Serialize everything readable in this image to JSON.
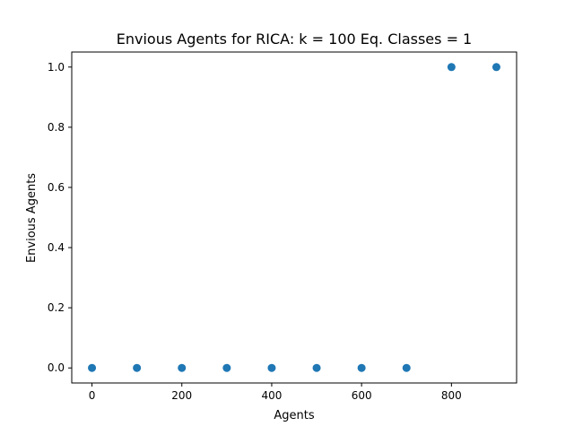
{
  "chart_data": {
    "type": "scatter",
    "title": "Envious Agents for RICA: k = 100 Eq. Classes = 1",
    "xlabel": "Agents",
    "ylabel": "Envious Agents",
    "xlim": [
      -45,
      945
    ],
    "ylim": [
      -0.05,
      1.05
    ],
    "x_ticks": [
      0,
      200,
      400,
      600,
      800
    ],
    "x_tick_labels": [
      "0",
      "200",
      "400",
      "600",
      "800"
    ],
    "y_ticks": [
      0.0,
      0.2,
      0.4,
      0.6,
      0.8,
      1.0
    ],
    "y_tick_labels": [
      "0.0",
      "0.2",
      "0.4",
      "0.6",
      "0.8",
      "1.0"
    ],
    "grid": false,
    "series": [
      {
        "color": "#1f77b4",
        "x": [
          0,
          100,
          200,
          300,
          400,
          500,
          600,
          700,
          800,
          900
        ],
        "y": [
          0,
          0,
          0,
          0,
          0,
          0,
          0,
          0,
          1,
          1
        ]
      }
    ]
  }
}
